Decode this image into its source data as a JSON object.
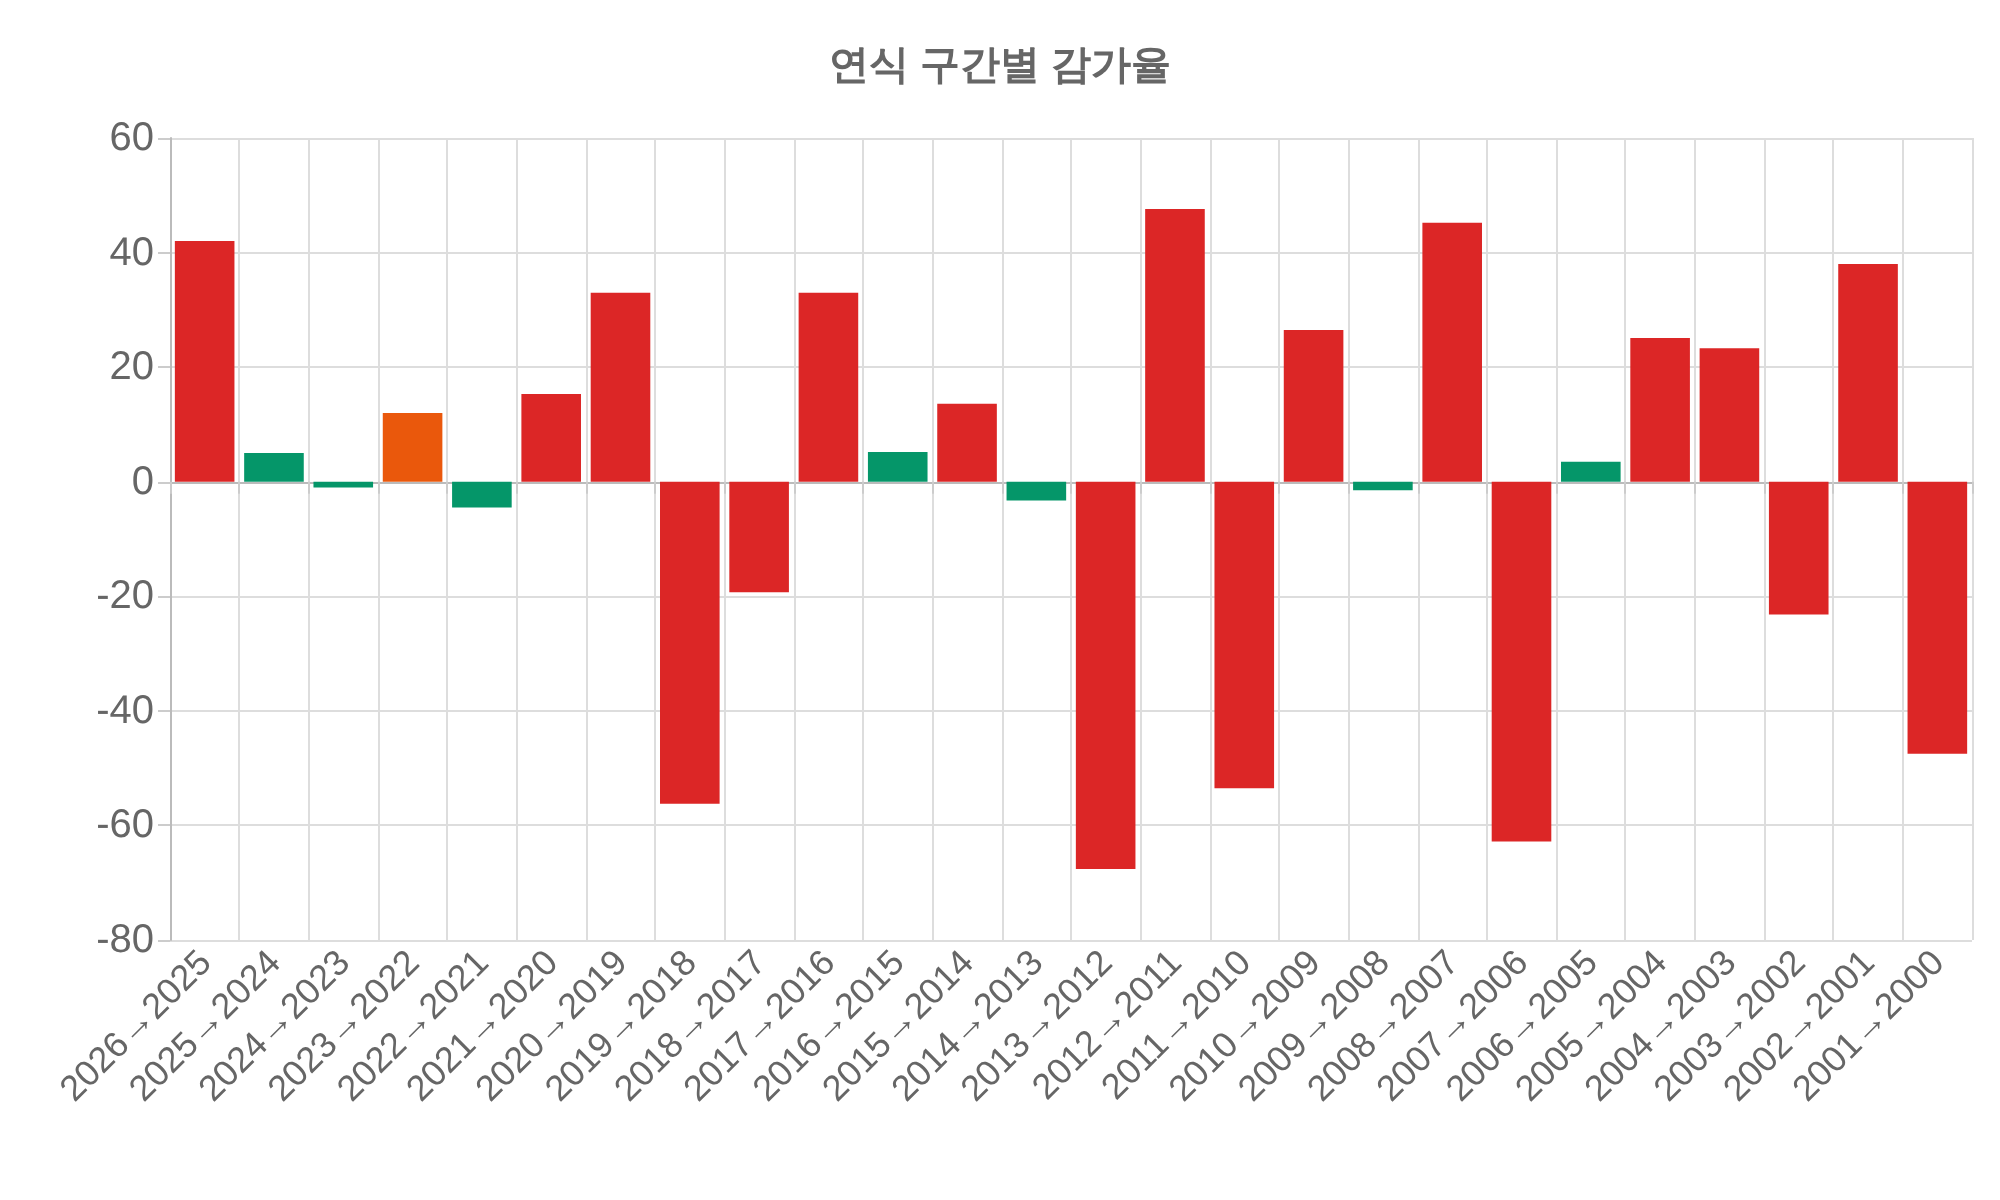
{
  "chart_data": {
    "type": "bar",
    "title": "연식 구간별 감가율",
    "categories": [
      "2026→2025",
      "2025→2024",
      "2024→2023",
      "2023→2022",
      "2022→2021",
      "2021→2020",
      "2020→2019",
      "2019→2018",
      "2018→2017",
      "2017→2016",
      "2016→2015",
      "2015→2014",
      "2014→2013",
      "2013→2012",
      "2012→2011",
      "2011→2010",
      "2010→2009",
      "2009→2008",
      "2008→2007",
      "2007→2006",
      "2006→2005",
      "2005→2004",
      "2004→2003",
      "2003→2002",
      "2002→2001",
      "2001→2000"
    ],
    "values": [
      42,
      5,
      -1,
      12,
      -4.5,
      15.3,
      33,
      -56.2,
      -19.3,
      33,
      5.2,
      13.6,
      -3.3,
      -67.6,
      47.6,
      -53.5,
      26.5,
      -1.5,
      45.2,
      -62.8,
      3.5,
      25.1,
      23.3,
      -23.2,
      38,
      -47.5
    ],
    "colors": [
      "#dc2626",
      "#059669",
      "#059669",
      "#ea580c",
      "#059669",
      "#dc2626",
      "#dc2626",
      "#dc2626",
      "#dc2626",
      "#dc2626",
      "#059669",
      "#dc2626",
      "#059669",
      "#dc2626",
      "#dc2626",
      "#dc2626",
      "#dc2626",
      "#059669",
      "#dc2626",
      "#dc2626",
      "#059669",
      "#dc2626",
      "#dc2626",
      "#dc2626",
      "#dc2626",
      "#dc2626"
    ],
    "ylim": [
      -80,
      60
    ],
    "yticks": [
      -80,
      -60,
      -40,
      -20,
      0,
      20,
      40,
      60
    ],
    "grid": true
  }
}
